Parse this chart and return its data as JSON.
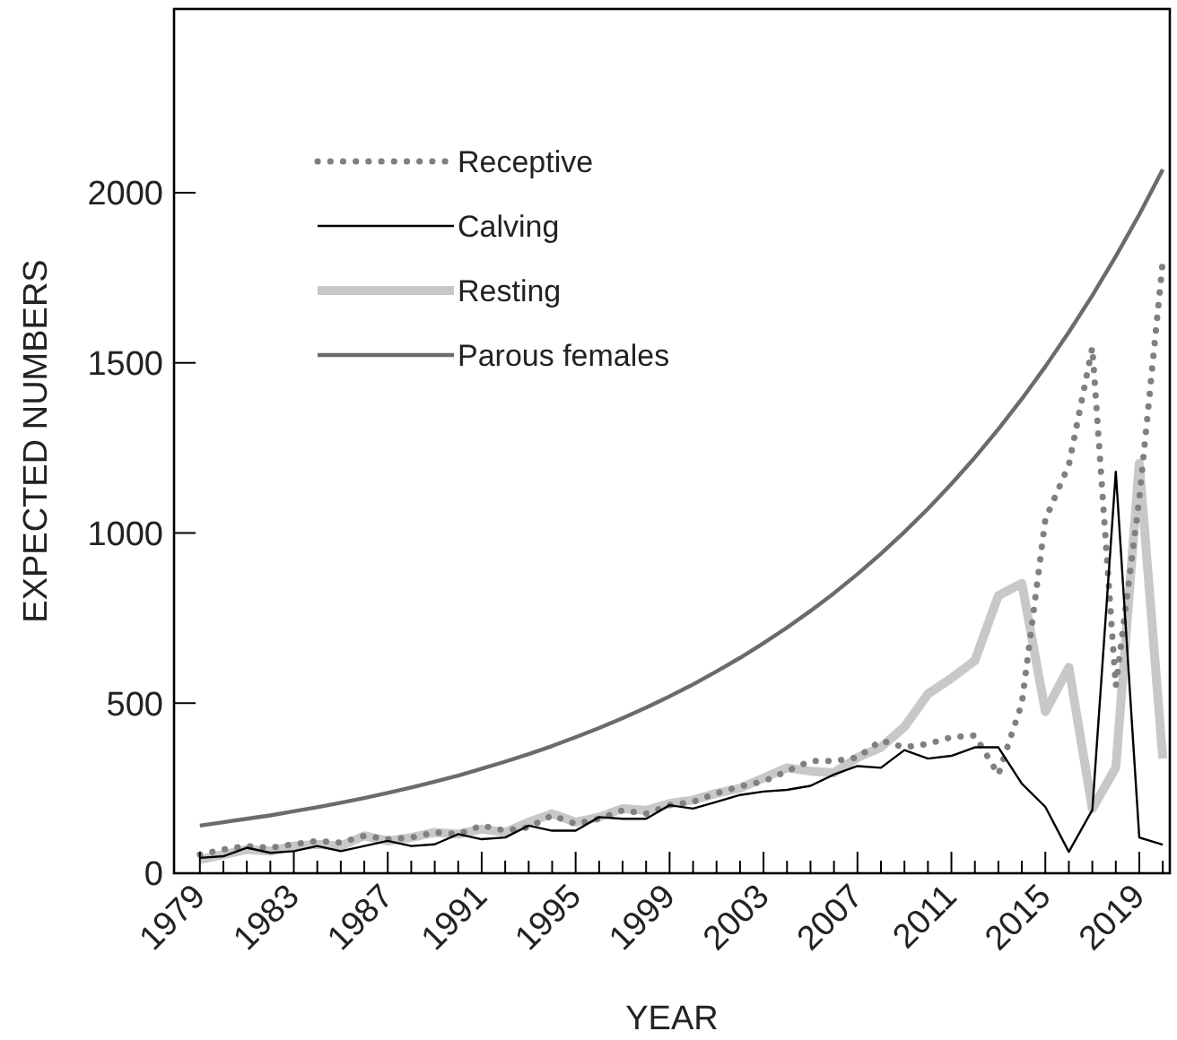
{
  "chart_data": {
    "type": "line",
    "xlabel": "YEAR",
    "ylabel": "EXPECTED NUMBERS",
    "x": [
      1979,
      1980,
      1981,
      1982,
      1983,
      1984,
      1985,
      1986,
      1987,
      1988,
      1989,
      1990,
      1991,
      1992,
      1993,
      1994,
      1995,
      1996,
      1997,
      1998,
      1999,
      2000,
      2001,
      2002,
      2003,
      2004,
      2005,
      2006,
      2007,
      2008,
      2009,
      2010,
      2011,
      2012,
      2013,
      2014,
      2015,
      2016,
      2017,
      2018,
      2019,
      2020
    ],
    "series": [
      {
        "name": "Receptive",
        "color": "#808080",
        "line_style": "dotted",
        "values": [
          55,
          70,
          80,
          75,
          85,
          95,
          90,
          110,
          100,
          105,
          120,
          115,
          140,
          125,
          135,
          170,
          145,
          160,
          185,
          175,
          200,
          210,
          235,
          255,
          270,
          300,
          330,
          330,
          340,
          390,
          370,
          380,
          400,
          405,
          290,
          500,
          1040,
          1200,
          1545,
          550,
          1100,
          1800
        ]
      },
      {
        "name": "Calving",
        "color": "#000000",
        "line_style": "solid",
        "values": [
          45,
          50,
          75,
          60,
          65,
          80,
          65,
          80,
          95,
          80,
          85,
          115,
          100,
          105,
          140,
          125,
          125,
          165,
          160,
          160,
          200,
          190,
          210,
          230,
          240,
          245,
          257,
          290,
          315,
          310,
          362,
          337,
          345,
          370,
          370,
          263,
          195,
          63,
          186,
          1180,
          105,
          84
        ]
      },
      {
        "name": "Resting",
        "color": "#c8c8c8",
        "line_style": "solid",
        "values": [
          40,
          55,
          70,
          65,
          80,
          85,
          80,
          110,
          95,
          105,
          120,
          115,
          130,
          120,
          150,
          175,
          150,
          165,
          190,
          185,
          205,
          215,
          235,
          250,
          280,
          310,
          300,
          295,
          340,
          370,
          430,
          527,
          573,
          625,
          816,
          852,
          475,
          605,
          190,
          310,
          1205,
          337
        ]
      },
      {
        "name": "Parous females",
        "color": "#6b6b6b",
        "line_style": "solid",
        "values": [
          140,
          150,
          160,
          170,
          182,
          194,
          207,
          221,
          236,
          252,
          269,
          287,
          307,
          328,
          350,
          374,
          400,
          427,
          456,
          487,
          520,
          555,
          593,
          633,
          676,
          722,
          771,
          823,
          879,
          939,
          1003,
          1071,
          1144,
          1222,
          1305,
          1394,
          1489,
          1590,
          1698,
          1813,
          1936,
          2068
        ]
      }
    ],
    "xlim": [
      1977.9,
      2020.3
    ],
    "xticks": [
      1979,
      {
        "value": 1980,
        "label": null
      },
      {
        "value": 1981,
        "label": null
      },
      {
        "value": 1982,
        "label": null
      },
      1983,
      {
        "value": 1984,
        "label": null
      },
      {
        "value": 1985,
        "label": null
      },
      {
        "value": 1986,
        "label": null
      },
      1987,
      {
        "value": 1988,
        "label": null
      },
      {
        "value": 1989,
        "label": null
      },
      {
        "value": 1990,
        "label": null
      },
      1991,
      {
        "value": 1992,
        "label": null
      },
      {
        "value": 1993,
        "label": null
      },
      {
        "value": 1994,
        "label": null
      },
      1995,
      {
        "value": 1996,
        "label": null
      },
      {
        "value": 1997,
        "label": null
      },
      {
        "value": 1998,
        "label": null
      },
      1999,
      {
        "value": 2000,
        "label": null
      },
      {
        "value": 2001,
        "label": null
      },
      {
        "value": 2002,
        "label": null
      },
      2003,
      {
        "value": 2004,
        "label": null
      },
      {
        "value": 2005,
        "label": null
      },
      {
        "value": 2006,
        "label": null
      },
      2007,
      {
        "value": 2008,
        "label": null
      },
      {
        "value": 2009,
        "label": null
      },
      {
        "value": 2010,
        "label": null
      },
      2011,
      {
        "value": 2012,
        "label": null
      },
      {
        "value": 2013,
        "label": null
      },
      {
        "value": 2014,
        "label": null
      },
      2015,
      {
        "value": 2016,
        "label": null
      },
      {
        "value": 2017,
        "label": null
      },
      {
        "value": 2018,
        "label": null
      },
      2019,
      {
        "value": 2020,
        "label": null
      }
    ],
    "ylim": [
      0,
      2540
    ],
    "yticks": [
      0,
      500,
      1000,
      1500,
      2000
    ],
    "grid": false,
    "legend": "top left",
    "marker": "none"
  }
}
